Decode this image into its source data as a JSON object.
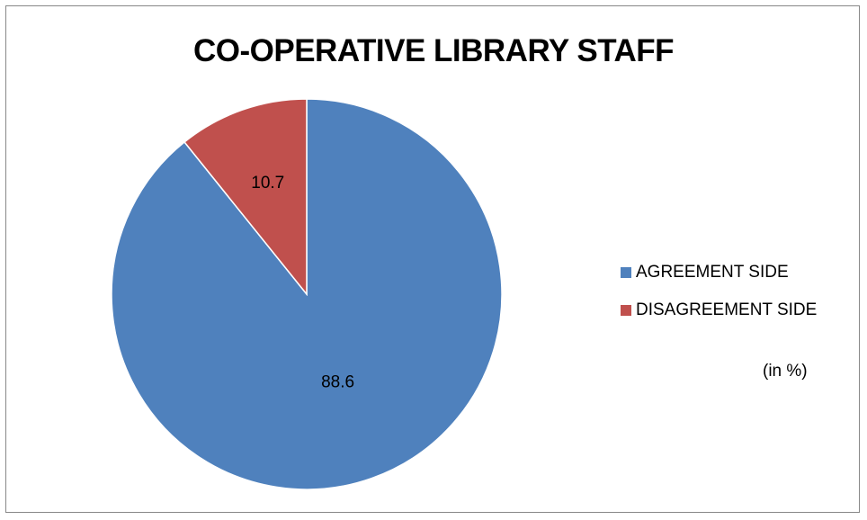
{
  "chart_data": {
    "type": "pie",
    "title": "CO-OPERATIVE LIBRARY STAFF",
    "categories": [
      "AGREEMENT SIDE",
      "DISAGREEMENT SIDE"
    ],
    "values": [
      88.6,
      10.7
    ],
    "data_labels": [
      "88.6",
      "10.7"
    ],
    "colors": [
      "#4F81BD",
      "#C0504D"
    ],
    "unit_note": "(in %)",
    "legend_position": "right"
  }
}
